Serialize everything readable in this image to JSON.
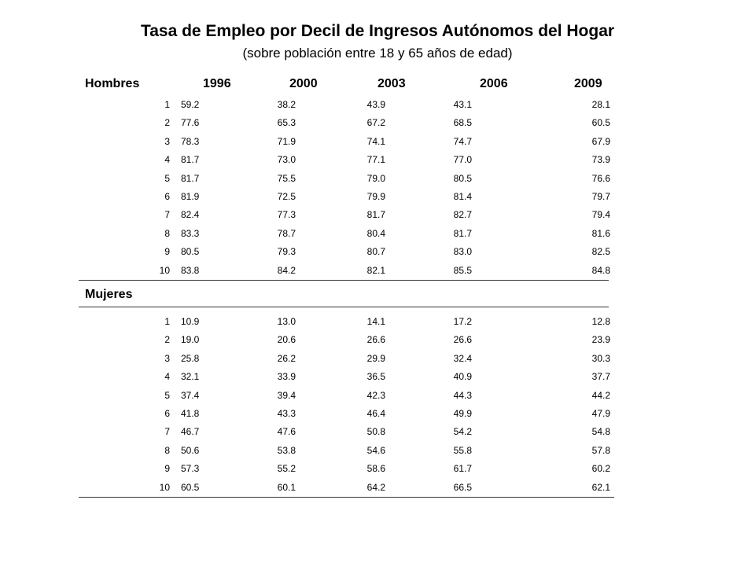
{
  "title": "Tasa de Empleo por Decil de Ingresos Autónomos del Hogar",
  "subtitle": "(sobre población entre 18 y 65 años de edad)",
  "years": [
    "1996",
    "2000",
    "2003",
    "2006",
    "2009"
  ],
  "hombres": {
    "label": "Hombres",
    "rows": [
      {
        "decil": "1",
        "values": [
          "59.2",
          "38.2",
          "43.9",
          "43.1",
          "28.1"
        ]
      },
      {
        "decil": "2",
        "values": [
          "77.6",
          "65.3",
          "67.2",
          "68.5",
          "60.5"
        ]
      },
      {
        "decil": "3",
        "values": [
          "78.3",
          "71.9",
          "74.1",
          "74.7",
          "67.9"
        ]
      },
      {
        "decil": "4",
        "values": [
          "81.7",
          "73.0",
          "77.1",
          "77.0",
          "73.9"
        ]
      },
      {
        "decil": "5",
        "values": [
          "81.7",
          "75.5",
          "79.0",
          "80.5",
          "76.6"
        ]
      },
      {
        "decil": "6",
        "values": [
          "81.9",
          "72.5",
          "79.9",
          "81.4",
          "79.7"
        ]
      },
      {
        "decil": "7",
        "values": [
          "82.4",
          "77.3",
          "81.7",
          "82.7",
          "79.4"
        ]
      },
      {
        "decil": "8",
        "values": [
          "83.3",
          "78.7",
          "80.4",
          "81.7",
          "81.6"
        ]
      },
      {
        "decil": "9",
        "values": [
          "80.5",
          "79.3",
          "80.7",
          "83.0",
          "82.5"
        ]
      },
      {
        "decil": "10",
        "values": [
          "83.8",
          "84.2",
          "82.1",
          "85.5",
          "84.8"
        ]
      }
    ]
  },
  "mujeres": {
    "label": "Mujeres",
    "rows": [
      {
        "decil": "1",
        "values": [
          "10.9",
          "13.0",
          "14.1",
          "17.2",
          "12.8"
        ]
      },
      {
        "decil": "2",
        "values": [
          "19.0",
          "20.6",
          "26.6",
          "26.6",
          "23.9"
        ]
      },
      {
        "decil": "3",
        "values": [
          "25.8",
          "26.2",
          "29.9",
          "32.4",
          "30.3"
        ]
      },
      {
        "decil": "4",
        "values": [
          "32.1",
          "33.9",
          "36.5",
          "40.9",
          "37.7"
        ]
      },
      {
        "decil": "5",
        "values": [
          "37.4",
          "39.4",
          "42.3",
          "44.3",
          "44.2"
        ]
      },
      {
        "decil": "6",
        "values": [
          "41.8",
          "43.3",
          "46.4",
          "49.9",
          "47.9"
        ]
      },
      {
        "decil": "7",
        "values": [
          "46.7",
          "47.6",
          "50.8",
          "54.2",
          "54.8"
        ]
      },
      {
        "decil": "8",
        "values": [
          "50.6",
          "53.8",
          "54.6",
          "55.8",
          "57.8"
        ]
      },
      {
        "decil": "9",
        "values": [
          "57.3",
          "55.2",
          "58.6",
          "61.7",
          "60.2"
        ]
      },
      {
        "decil": "10",
        "values": [
          "60.5",
          "60.1",
          "64.2",
          "66.5",
          "62.1"
        ]
      }
    ]
  }
}
